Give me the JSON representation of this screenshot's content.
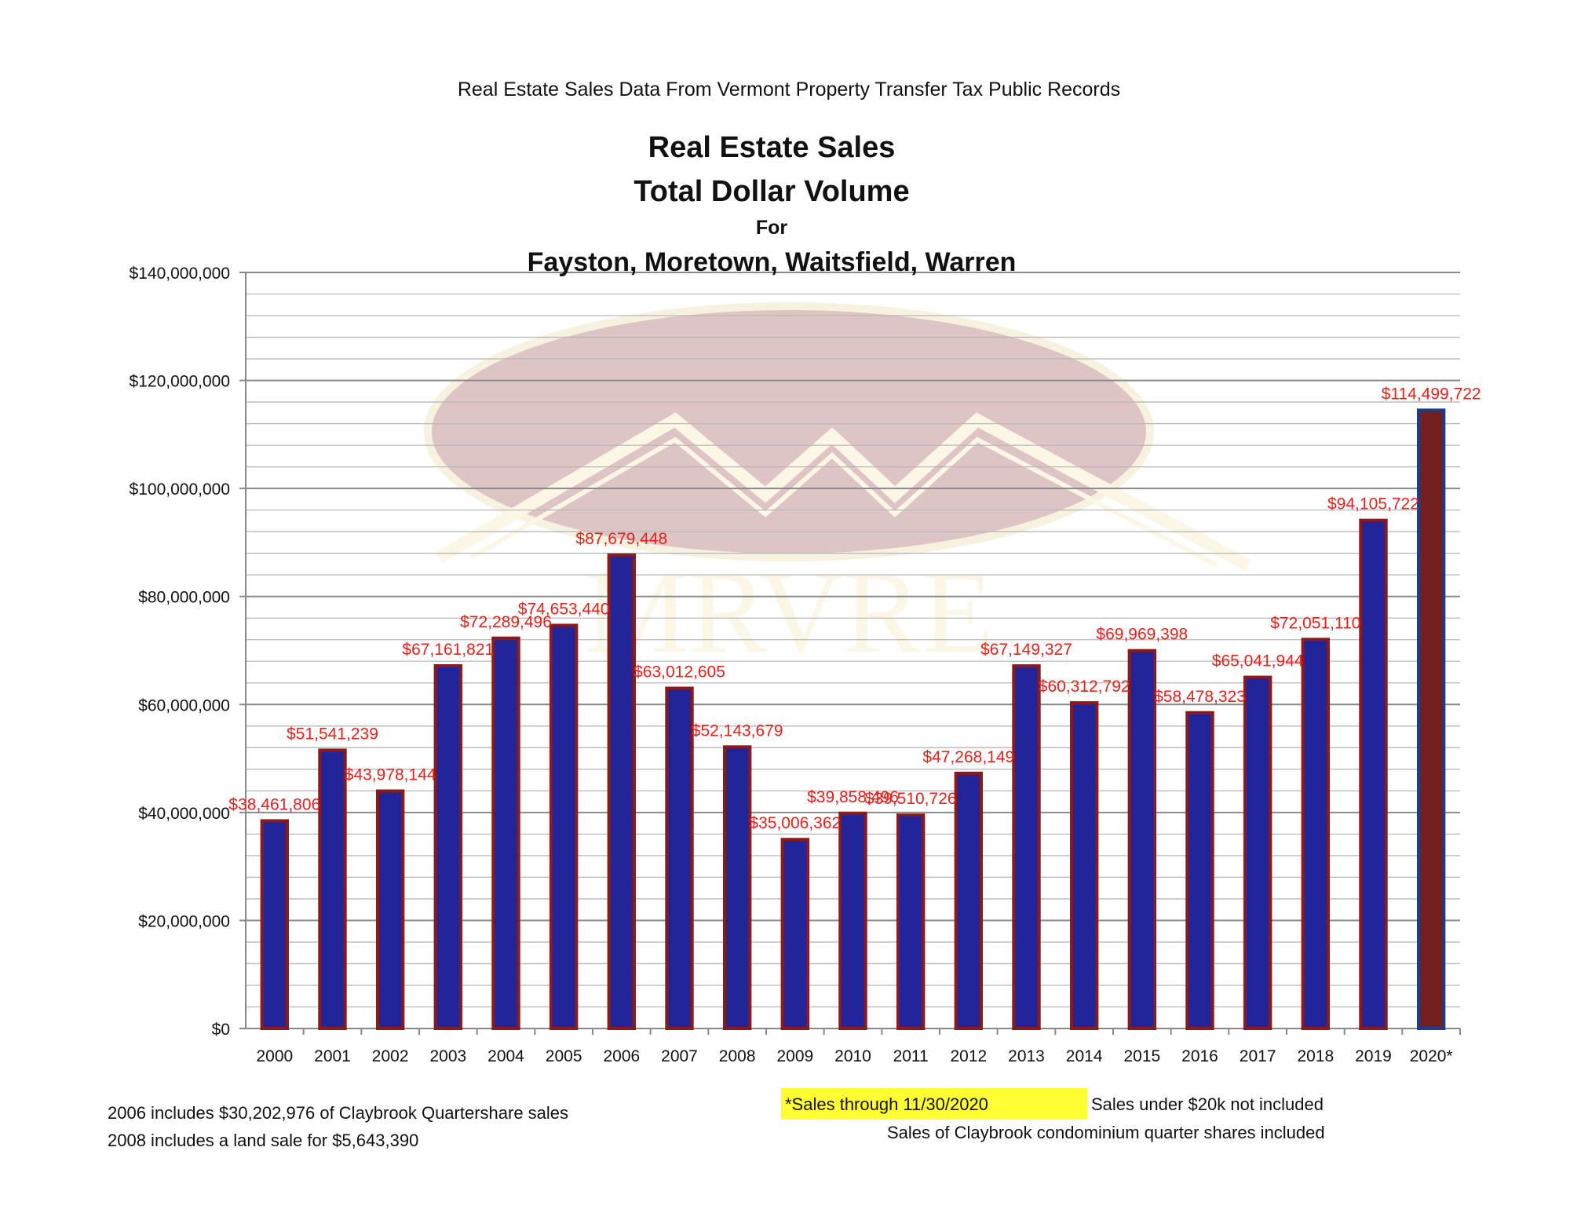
{
  "header": {
    "source_line": "Real Estate Sales Data From Vermont Property Transfer Tax Public Records",
    "title_line1": "Real Estate Sales",
    "title_line2": "Total Dollar Volume",
    "title_line3": "For",
    "title_line4": "Fayston, Moretown, Waitsfield, Warren"
  },
  "watermark": {
    "text": "MRVRE"
  },
  "chart_data": {
    "type": "bar",
    "categories": [
      "2000",
      "2001",
      "2002",
      "2003",
      "2004",
      "2005",
      "2006",
      "2007",
      "2008",
      "2009",
      "2010",
      "2011",
      "2012",
      "2013",
      "2014",
      "2015",
      "2016",
      "2017",
      "2018",
      "2019",
      "2020*"
    ],
    "values": [
      38461806,
      51541239,
      43978144,
      67161821,
      72289496,
      74653440,
      87679448,
      63012605,
      52143679,
      35006362,
      39858496,
      39510726,
      47268149,
      67149327,
      60312792,
      69969398,
      58478323,
      65041944,
      72051110,
      94105722,
      114499722
    ],
    "data_labels": [
      "$38,461,806",
      "$51,541,239",
      "$43,978,144",
      "$67,161,821",
      "$72,289,496",
      "$74,653,440",
      "$87,679,448",
      "$63,012,605",
      "$52,143,679",
      "$35,006,362",
      "$39,858,496",
      "$39,510,726",
      "$47,268,149",
      "$67,149,327",
      "$60,312,792",
      "$69,969,398",
      "$58,478,323",
      "$65,041,944",
      "$72,051,110",
      "$94,105,722",
      "$114,499,722"
    ],
    "y_tick_labels": [
      "$0",
      "$20,000,000",
      "$40,000,000",
      "$60,000,000",
      "$80,000,000",
      "$100,000,000",
      "$120,000,000",
      "$140,000,000"
    ],
    "ylim": [
      0,
      140000000
    ],
    "major_tick_step": 20000000,
    "minor_gridline_step": 4000000,
    "grid": true,
    "legend": "none",
    "colors": {
      "bar_fill": "#22249a",
      "bar_border": "#8b1a1a",
      "highlight_bar_fill": "#72201f",
      "highlight_bar_border": "#1f3c88",
      "label": "#e8201a",
      "grid": "#9a9a9a"
    },
    "highlight_index": 20
  },
  "footnotes": {
    "left_1": "2006 includes $30,202,976 of Claybrook Quartershare sales",
    "left_2": "2008 includes a land sale for $5,643,390",
    "highlighted_note": "*Sales through 11/30/2020",
    "highlight_color": "#ffff33",
    "right_1": "Sales under $20k not included",
    "right_2": "Sales of Claybrook condominium quarter shares included"
  }
}
